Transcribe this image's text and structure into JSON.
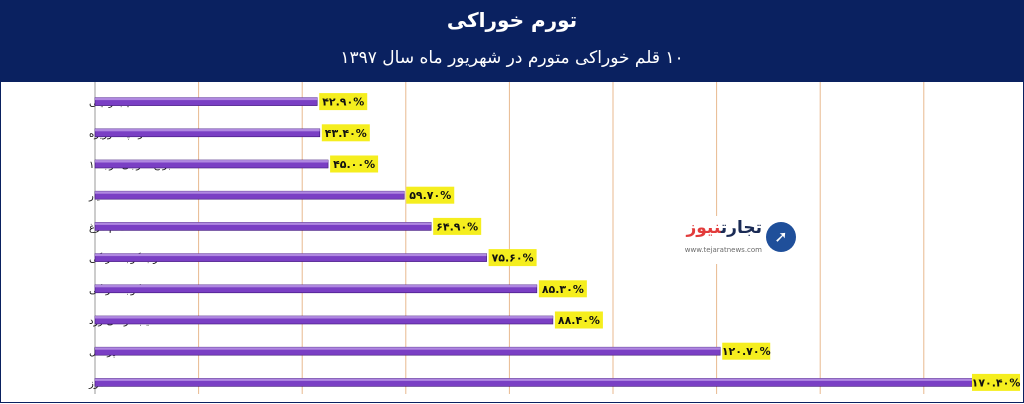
{
  "header": {
    "title": "تورم خوراکی",
    "subtitle": "۱۰ قلم خوراکی متورم در شهریور ماه سال ۱۳۹۷"
  },
  "logo": {
    "name_part1": "تجارت",
    "name_part2": "نیوز",
    "url": "www.tejaratnews.com"
  },
  "colors": {
    "header_bg": "#0a2160",
    "bar": "#7a3fc4",
    "label_bg": "#f5ee1e",
    "grid": "#e8b98f"
  },
  "chart_data": {
    "type": "bar",
    "orientation": "horizontal",
    "categories": [
      "سیب زمینی",
      "کره پاستوریزه",
      "برنج خارجی درجه ۱",
      "خیار",
      "تخم مرغ",
      "رب گوجه فرنگی",
      "گوجه فرنگی",
      "سیب درختی زرد",
      "پرتقال",
      "موز"
    ],
    "values": [
      42.9,
      43.4,
      45.0,
      59.7,
      64.9,
      75.6,
      85.3,
      88.4,
      120.7,
      170.4
    ],
    "data_labels": [
      "۴۲.۹۰%",
      "۴۳.۴۰%",
      "۴۵.۰۰%",
      "۵۹.۷۰%",
      "۶۴.۹۰%",
      "۷۵.۶۰%",
      "۸۵.۳۰%",
      "۸۸.۴۰%",
      "۱۲۰.۷۰%",
      "۱۷۰.۴۰%"
    ],
    "xlim": [
      0,
      180
    ],
    "grid": true
  }
}
